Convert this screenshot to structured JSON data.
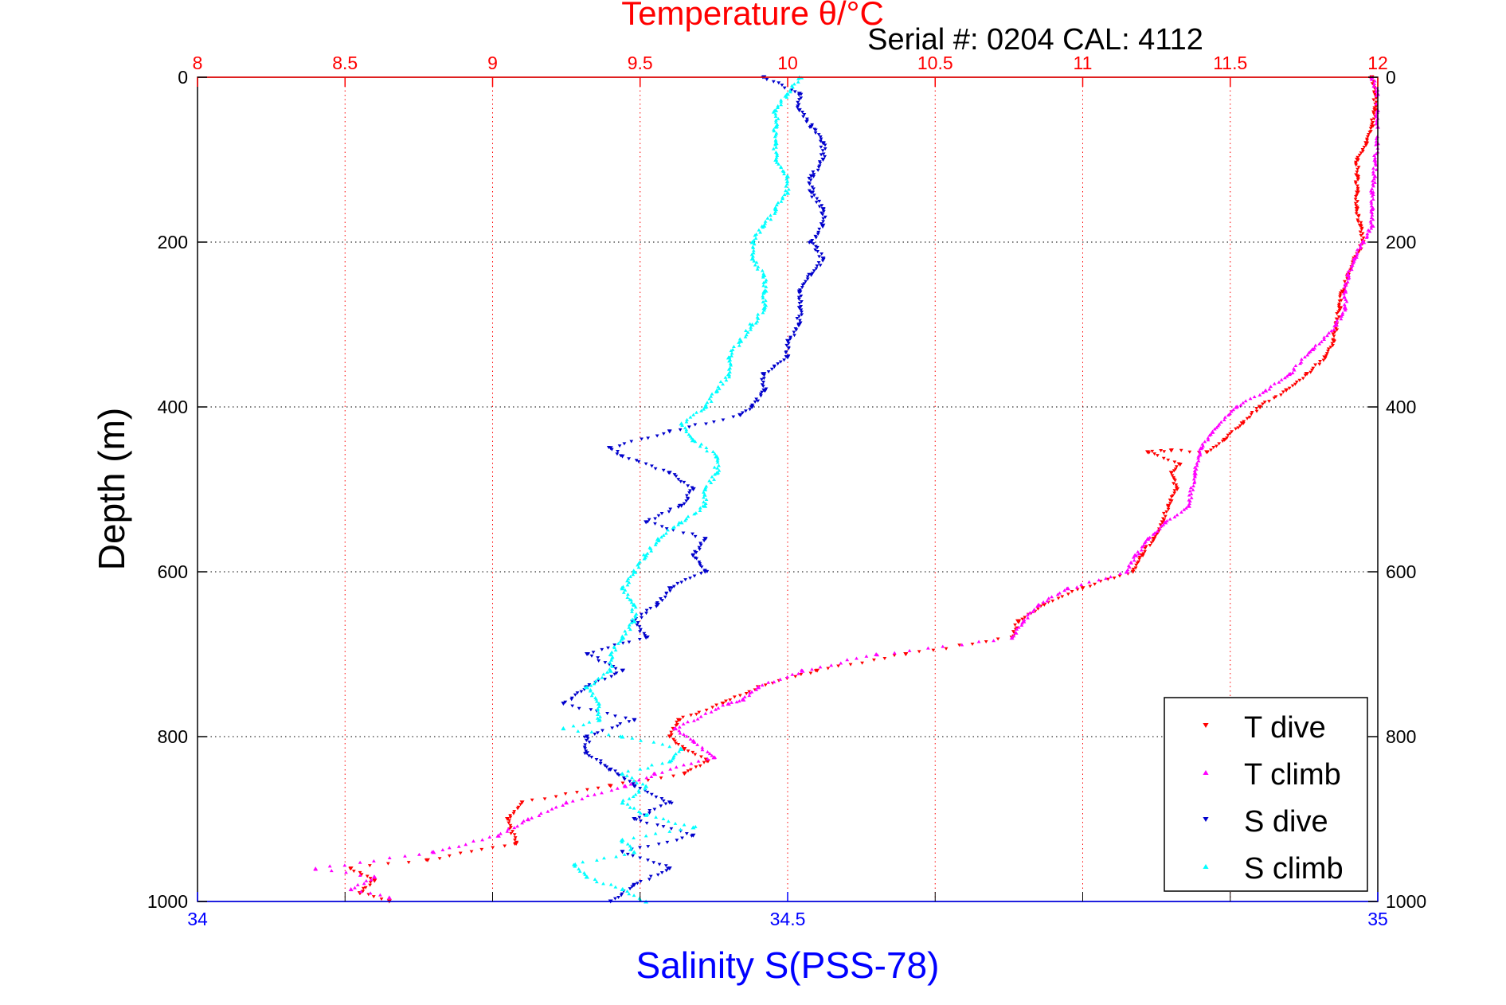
{
  "chart_data": {
    "type": "scatter",
    "title": "Temperature θ/°C",
    "annotation": "Serial #: 0204  CAL: 4112",
    "ylabel": "Depth (m)",
    "xlabel_bottom": "Salinity S(PSS-78)",
    "ylim": [
      1000,
      0
    ],
    "y_reversed": true,
    "y_ticks": [
      0,
      200,
      400,
      600,
      800,
      1000
    ],
    "x_top": {
      "label": "Temperature θ/°C",
      "range": [
        8,
        12
      ],
      "ticks": [
        8,
        8.5,
        9,
        9.5,
        10,
        10.5,
        11,
        11.5,
        12
      ],
      "color": "#ff0000"
    },
    "x_bottom": {
      "label": "Salinity S(PSS-78)",
      "range": [
        34,
        35
      ],
      "ticks": [
        34,
        34.5,
        35
      ],
      "color": "#0000ff"
    },
    "grid": true,
    "legend_position": "bottom-right",
    "series": [
      {
        "name": "T dive",
        "axis": "top",
        "color": "#ff0000",
        "marker": "triangle-down",
        "points": [
          [
            11.98,
            0
          ],
          [
            11.99,
            20
          ],
          [
            11.99,
            40
          ],
          [
            11.98,
            60
          ],
          [
            11.96,
            80
          ],
          [
            11.93,
            100
          ],
          [
            11.93,
            120
          ],
          [
            11.93,
            140
          ],
          [
            11.93,
            160
          ],
          [
            11.94,
            180
          ],
          [
            11.95,
            200
          ],
          [
            11.92,
            220
          ],
          [
            11.9,
            240
          ],
          [
            11.88,
            260
          ],
          [
            11.87,
            280
          ],
          [
            11.86,
            300
          ],
          [
            11.85,
            320
          ],
          [
            11.82,
            340
          ],
          [
            11.76,
            360
          ],
          [
            11.69,
            380
          ],
          [
            11.6,
            400
          ],
          [
            11.54,
            420
          ],
          [
            11.48,
            440
          ],
          [
            11.42,
            455
          ],
          [
            11.3,
            453
          ],
          [
            11.22,
            455
          ],
          [
            11.33,
            470
          ],
          [
            11.3,
            480
          ],
          [
            11.32,
            500
          ],
          [
            11.29,
            520
          ],
          [
            11.27,
            540
          ],
          [
            11.24,
            560
          ],
          [
            11.2,
            580
          ],
          [
            11.17,
            600
          ],
          [
            11.0,
            620
          ],
          [
            10.87,
            640
          ],
          [
            10.78,
            660
          ],
          [
            10.76,
            680
          ],
          [
            10.4,
            700
          ],
          [
            10.1,
            720
          ],
          [
            9.9,
            740
          ],
          [
            9.78,
            760
          ],
          [
            9.63,
            780
          ],
          [
            9.6,
            800
          ],
          [
            9.65,
            815
          ],
          [
            9.73,
            830
          ],
          [
            9.65,
            845
          ],
          [
            9.4,
            860
          ],
          [
            9.1,
            880
          ],
          [
            9.05,
            900
          ],
          [
            9.08,
            930
          ],
          [
            8.78,
            950
          ],
          [
            8.52,
            960
          ],
          [
            8.6,
            975
          ],
          [
            8.55,
            990
          ],
          [
            8.65,
            1000
          ]
        ]
      },
      {
        "name": "T climb",
        "axis": "top",
        "color": "#ff00ff",
        "marker": "triangle-up",
        "points": [
          [
            11.98,
            0
          ],
          [
            12.0,
            20
          ],
          [
            12.0,
            40
          ],
          [
            12.0,
            60
          ],
          [
            12.0,
            80
          ],
          [
            11.99,
            100
          ],
          [
            11.99,
            120
          ],
          [
            11.98,
            140
          ],
          [
            11.98,
            160
          ],
          [
            11.98,
            180
          ],
          [
            11.95,
            200
          ],
          [
            11.92,
            220
          ],
          [
            11.9,
            240
          ],
          [
            11.89,
            260
          ],
          [
            11.89,
            280
          ],
          [
            11.86,
            300
          ],
          [
            11.78,
            330
          ],
          [
            11.7,
            360
          ],
          [
            11.62,
            380
          ],
          [
            11.52,
            400
          ],
          [
            11.44,
            430
          ],
          [
            11.4,
            450
          ],
          [
            11.38,
            480
          ],
          [
            11.36,
            520
          ],
          [
            11.28,
            540
          ],
          [
            11.22,
            560
          ],
          [
            11.18,
            580
          ],
          [
            11.15,
            600
          ],
          [
            10.95,
            620
          ],
          [
            10.85,
            640
          ],
          [
            10.8,
            660
          ],
          [
            10.76,
            680
          ],
          [
            10.3,
            700
          ],
          [
            10.05,
            720
          ],
          [
            9.9,
            740
          ],
          [
            9.85,
            755
          ],
          [
            9.8,
            760
          ],
          [
            9.62,
            790
          ],
          [
            9.68,
            805
          ],
          [
            9.75,
            825
          ],
          [
            9.55,
            845
          ],
          [
            9.45,
            860
          ],
          [
            9.25,
            880
          ],
          [
            9.12,
            900
          ],
          [
            9.02,
            920
          ],
          [
            8.8,
            940
          ],
          [
            8.4,
            960
          ],
          [
            8.6,
            970
          ],
          [
            8.52,
            985
          ],
          [
            8.65,
            995
          ]
        ]
      },
      {
        "name": "S dive",
        "axis": "bottom",
        "color": "#0000cc",
        "marker": "triangle-down",
        "points": [
          [
            34.48,
            0
          ],
          [
            34.51,
            20
          ],
          [
            34.51,
            40
          ],
          [
            34.52,
            60
          ],
          [
            34.53,
            80
          ],
          [
            34.53,
            100
          ],
          [
            34.52,
            120
          ],
          [
            34.52,
            140
          ],
          [
            34.53,
            160
          ],
          [
            34.53,
            180
          ],
          [
            34.52,
            200
          ],
          [
            34.53,
            220
          ],
          [
            34.52,
            240
          ],
          [
            34.51,
            260
          ],
          [
            34.51,
            280
          ],
          [
            34.51,
            300
          ],
          [
            34.5,
            320
          ],
          [
            34.5,
            340
          ],
          [
            34.48,
            360
          ],
          [
            34.48,
            380
          ],
          [
            34.47,
            400
          ],
          [
            34.46,
            410
          ],
          [
            34.4,
            430
          ],
          [
            34.35,
            450
          ],
          [
            34.36,
            460
          ],
          [
            34.4,
            480
          ],
          [
            34.42,
            500
          ],
          [
            34.41,
            520
          ],
          [
            34.38,
            540
          ],
          [
            34.43,
            560
          ],
          [
            34.42,
            580
          ],
          [
            34.43,
            600
          ],
          [
            34.4,
            620
          ],
          [
            34.39,
            640
          ],
          [
            34.37,
            660
          ],
          [
            34.38,
            680
          ],
          [
            34.33,
            700
          ],
          [
            34.36,
            720
          ],
          [
            34.33,
            740
          ],
          [
            34.31,
            760
          ],
          [
            34.37,
            780
          ],
          [
            34.33,
            800
          ],
          [
            34.33,
            820
          ],
          [
            34.35,
            840
          ],
          [
            34.37,
            860
          ],
          [
            34.4,
            880
          ],
          [
            34.37,
            900
          ],
          [
            34.42,
            920
          ],
          [
            34.36,
            940
          ],
          [
            34.4,
            960
          ],
          [
            34.37,
            980
          ],
          [
            34.35,
            1000
          ]
        ]
      },
      {
        "name": "S climb",
        "axis": "bottom",
        "color": "#00ffff",
        "marker": "triangle-up",
        "points": [
          [
            34.51,
            0
          ],
          [
            34.5,
            20
          ],
          [
            34.49,
            40
          ],
          [
            34.49,
            60
          ],
          [
            34.49,
            80
          ],
          [
            34.49,
            100
          ],
          [
            34.5,
            120
          ],
          [
            34.5,
            140
          ],
          [
            34.49,
            160
          ],
          [
            34.48,
            180
          ],
          [
            34.47,
            200
          ],
          [
            34.47,
            220
          ],
          [
            34.48,
            240
          ],
          [
            34.48,
            260
          ],
          [
            34.48,
            280
          ],
          [
            34.47,
            300
          ],
          [
            34.46,
            320
          ],
          [
            34.45,
            340
          ],
          [
            34.45,
            360
          ],
          [
            34.44,
            380
          ],
          [
            34.43,
            400
          ],
          [
            34.41,
            420
          ],
          [
            34.42,
            440
          ],
          [
            34.44,
            460
          ],
          [
            34.44,
            480
          ],
          [
            34.43,
            500
          ],
          [
            34.43,
            520
          ],
          [
            34.41,
            540
          ],
          [
            34.39,
            560
          ],
          [
            34.38,
            580
          ],
          [
            34.37,
            600
          ],
          [
            34.36,
            620
          ],
          [
            34.37,
            640
          ],
          [
            34.37,
            660
          ],
          [
            34.36,
            680
          ],
          [
            34.35,
            700
          ],
          [
            34.35,
            720
          ],
          [
            34.33,
            740
          ],
          [
            34.34,
            760
          ],
          [
            34.34,
            780
          ],
          [
            34.31,
            790
          ],
          [
            34.36,
            800
          ],
          [
            34.41,
            815
          ],
          [
            34.4,
            830
          ],
          [
            34.36,
            845
          ],
          [
            34.38,
            860
          ],
          [
            34.36,
            880
          ],
          [
            34.38,
            895
          ],
          [
            34.42,
            910
          ],
          [
            34.36,
            925
          ],
          [
            34.37,
            940
          ],
          [
            34.32,
            955
          ],
          [
            34.33,
            970
          ],
          [
            34.36,
            985
          ],
          [
            34.38,
            1000
          ]
        ]
      }
    ]
  }
}
